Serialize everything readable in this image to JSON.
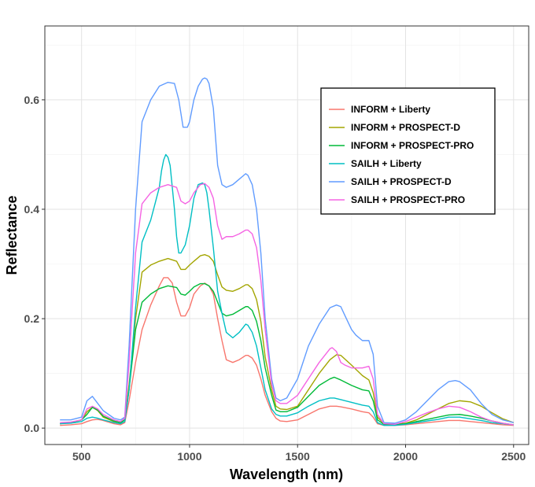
{
  "chart_data": {
    "type": "line",
    "title": "",
    "xlabel": "Wavelength (nm)",
    "ylabel": "Reflectance",
    "xlim": [
      330,
      2570
    ],
    "ylim": [
      -0.03,
      0.735
    ],
    "xticks": [
      500,
      1000,
      1500,
      2000,
      2500
    ],
    "xtick_labels": [
      "500",
      "1000",
      "1500",
      "2000",
      "2500"
    ],
    "yticks": [
      0.0,
      0.2,
      0.4,
      0.6
    ],
    "ytick_labels": [
      "0.0",
      "0.2",
      "0.4",
      "0.6"
    ],
    "grid": true,
    "legend_position": "top-right",
    "series": [
      {
        "name": "INFORM + Liberty",
        "color": "#F8766D",
        "x": [
          400,
          450,
          500,
          525,
          550,
          575,
          600,
          650,
          680,
          700,
          720,
          750,
          780,
          820,
          860,
          880,
          900,
          920,
          940,
          960,
          980,
          1000,
          1020,
          1050,
          1070,
          1090,
          1110,
          1130,
          1150,
          1170,
          1200,
          1230,
          1260,
          1270,
          1290,
          1310,
          1330,
          1350,
          1380,
          1400,
          1420,
          1450,
          1500,
          1550,
          1600,
          1650,
          1680,
          1700,
          1750,
          1800,
          1830,
          1850,
          1870,
          1900,
          1950,
          2000,
          2050,
          2100,
          2150,
          2200,
          2250,
          2300,
          2350,
          2400,
          2450,
          2500
        ],
        "y": [
          0.005,
          0.006,
          0.008,
          0.012,
          0.015,
          0.016,
          0.014,
          0.008,
          0.006,
          0.01,
          0.05,
          0.12,
          0.18,
          0.225,
          0.26,
          0.275,
          0.275,
          0.265,
          0.23,
          0.205,
          0.205,
          0.22,
          0.245,
          0.26,
          0.265,
          0.26,
          0.245,
          0.2,
          0.16,
          0.125,
          0.12,
          0.125,
          0.133,
          0.133,
          0.128,
          0.115,
          0.09,
          0.06,
          0.03,
          0.018,
          0.013,
          0.012,
          0.015,
          0.025,
          0.035,
          0.04,
          0.04,
          0.039,
          0.035,
          0.03,
          0.028,
          0.02,
          0.008,
          0.005,
          0.005,
          0.006,
          0.008,
          0.01,
          0.012,
          0.014,
          0.014,
          0.012,
          0.01,
          0.008,
          0.006,
          0.005
        ]
      },
      {
        "name": "INFORM + PROSPECT-D",
        "color": "#A3A500",
        "x": [
          400,
          450,
          500,
          525,
          550,
          575,
          600,
          650,
          680,
          700,
          720,
          750,
          780,
          820,
          860,
          900,
          940,
          960,
          980,
          1000,
          1020,
          1050,
          1070,
          1090,
          1110,
          1130,
          1150,
          1170,
          1200,
          1230,
          1260,
          1270,
          1290,
          1310,
          1330,
          1350,
          1380,
          1400,
          1420,
          1450,
          1500,
          1550,
          1600,
          1650,
          1680,
          1700,
          1750,
          1800,
          1830,
          1850,
          1870,
          1900,
          1950,
          2000,
          2050,
          2100,
          2150,
          2200,
          2250,
          2300,
          2350,
          2400,
          2450,
          2500
        ],
        "y": [
          0.008,
          0.01,
          0.015,
          0.03,
          0.038,
          0.032,
          0.02,
          0.012,
          0.01,
          0.015,
          0.08,
          0.2,
          0.285,
          0.298,
          0.305,
          0.31,
          0.305,
          0.29,
          0.29,
          0.298,
          0.305,
          0.315,
          0.317,
          0.314,
          0.305,
          0.28,
          0.258,
          0.252,
          0.25,
          0.255,
          0.262,
          0.262,
          0.255,
          0.235,
          0.195,
          0.13,
          0.07,
          0.04,
          0.035,
          0.034,
          0.04,
          0.07,
          0.1,
          0.125,
          0.134,
          0.133,
          0.115,
          0.096,
          0.088,
          0.065,
          0.02,
          0.008,
          0.007,
          0.009,
          0.015,
          0.025,
          0.035,
          0.045,
          0.05,
          0.048,
          0.04,
          0.028,
          0.017,
          0.01
        ]
      },
      {
        "name": "INFORM + PROSPECT-PRO",
        "color": "#00BA38",
        "x": [
          400,
          450,
          500,
          525,
          550,
          575,
          600,
          650,
          680,
          700,
          720,
          750,
          780,
          820,
          860,
          900,
          940,
          960,
          980,
          1000,
          1020,
          1050,
          1070,
          1090,
          1110,
          1130,
          1150,
          1170,
          1200,
          1230,
          1260,
          1270,
          1290,
          1310,
          1330,
          1350,
          1380,
          1400,
          1420,
          1450,
          1500,
          1550,
          1600,
          1650,
          1670,
          1700,
          1750,
          1800,
          1830,
          1850,
          1870,
          1900,
          1950,
          2000,
          2050,
          2100,
          2150,
          2200,
          2250,
          2300,
          2350,
          2400,
          2450,
          2500
        ],
        "y": [
          0.008,
          0.01,
          0.015,
          0.025,
          0.038,
          0.033,
          0.022,
          0.013,
          0.01,
          0.015,
          0.07,
          0.18,
          0.23,
          0.245,
          0.255,
          0.26,
          0.257,
          0.245,
          0.243,
          0.25,
          0.258,
          0.264,
          0.264,
          0.26,
          0.25,
          0.23,
          0.21,
          0.205,
          0.208,
          0.215,
          0.222,
          0.222,
          0.215,
          0.195,
          0.16,
          0.11,
          0.06,
          0.033,
          0.03,
          0.03,
          0.038,
          0.058,
          0.078,
          0.09,
          0.093,
          0.088,
          0.078,
          0.07,
          0.068,
          0.05,
          0.015,
          0.007,
          0.006,
          0.008,
          0.012,
          0.016,
          0.02,
          0.024,
          0.025,
          0.022,
          0.018,
          0.013,
          0.009,
          0.006
        ]
      },
      {
        "name": "SAILH + Liberty",
        "color": "#00BFC4",
        "x": [
          400,
          450,
          500,
          525,
          550,
          575,
          600,
          650,
          680,
          700,
          720,
          750,
          780,
          800,
          820,
          840,
          860,
          870,
          880,
          890,
          900,
          910,
          920,
          930,
          940,
          950,
          960,
          980,
          1000,
          1020,
          1040,
          1060,
          1070,
          1080,
          1090,
          1110,
          1130,
          1150,
          1170,
          1200,
          1230,
          1260,
          1270,
          1290,
          1310,
          1330,
          1350,
          1380,
          1400,
          1420,
          1450,
          1500,
          1550,
          1600,
          1650,
          1670,
          1700,
          1750,
          1800,
          1830,
          1850,
          1870,
          1900,
          1950,
          2000,
          2050,
          2100,
          2150,
          2200,
          2250,
          2300,
          2350,
          2400,
          2450,
          2500
        ],
        "y": [
          0.008,
          0.009,
          0.012,
          0.018,
          0.02,
          0.018,
          0.015,
          0.01,
          0.008,
          0.012,
          0.07,
          0.22,
          0.34,
          0.36,
          0.38,
          0.41,
          0.44,
          0.47,
          0.49,
          0.5,
          0.495,
          0.48,
          0.44,
          0.4,
          0.35,
          0.32,
          0.32,
          0.335,
          0.37,
          0.42,
          0.445,
          0.448,
          0.445,
          0.43,
          0.4,
          0.33,
          0.25,
          0.21,
          0.175,
          0.165,
          0.175,
          0.19,
          0.188,
          0.175,
          0.15,
          0.11,
          0.07,
          0.035,
          0.025,
          0.022,
          0.022,
          0.028,
          0.04,
          0.05,
          0.055,
          0.055,
          0.052,
          0.047,
          0.042,
          0.04,
          0.03,
          0.01,
          0.005,
          0.005,
          0.007,
          0.01,
          0.013,
          0.016,
          0.02,
          0.02,
          0.017,
          0.014,
          0.01,
          0.008,
          0.006
        ]
      },
      {
        "name": "SAILH + PROSPECT-D",
        "color": "#619CFF",
        "x": [
          400,
          450,
          500,
          525,
          550,
          575,
          600,
          650,
          680,
          700,
          720,
          750,
          780,
          820,
          860,
          900,
          930,
          950,
          970,
          990,
          1000,
          1020,
          1040,
          1060,
          1070,
          1080,
          1090,
          1110,
          1130,
          1150,
          1170,
          1200,
          1230,
          1260,
          1270,
          1290,
          1310,
          1330,
          1350,
          1380,
          1400,
          1420,
          1450,
          1500,
          1550,
          1600,
          1650,
          1680,
          1700,
          1720,
          1750,
          1770,
          1800,
          1830,
          1850,
          1870,
          1900,
          1950,
          2000,
          2050,
          2100,
          2150,
          2200,
          2230,
          2250,
          2300,
          2350,
          2400,
          2450,
          2500
        ],
        "y": [
          0.015,
          0.015,
          0.02,
          0.05,
          0.058,
          0.045,
          0.032,
          0.018,
          0.015,
          0.02,
          0.15,
          0.4,
          0.56,
          0.6,
          0.625,
          0.632,
          0.63,
          0.6,
          0.55,
          0.55,
          0.56,
          0.6,
          0.625,
          0.638,
          0.64,
          0.638,
          0.63,
          0.585,
          0.48,
          0.445,
          0.44,
          0.445,
          0.455,
          0.465,
          0.462,
          0.445,
          0.4,
          0.32,
          0.2,
          0.09,
          0.055,
          0.05,
          0.055,
          0.09,
          0.15,
          0.19,
          0.22,
          0.225,
          0.222,
          0.205,
          0.18,
          0.17,
          0.16,
          0.16,
          0.135,
          0.04,
          0.01,
          0.009,
          0.015,
          0.03,
          0.05,
          0.07,
          0.085,
          0.087,
          0.085,
          0.07,
          0.045,
          0.025,
          0.015,
          0.01
        ]
      },
      {
        "name": "SAILH + PROSPECT-PRO",
        "color": "#F564E3",
        "x": [
          400,
          450,
          500,
          525,
          550,
          575,
          600,
          650,
          680,
          700,
          720,
          750,
          780,
          820,
          860,
          900,
          940,
          960,
          980,
          1000,
          1020,
          1050,
          1070,
          1090,
          1110,
          1130,
          1150,
          1170,
          1200,
          1230,
          1260,
          1270,
          1290,
          1310,
          1330,
          1350,
          1380,
          1400,
          1420,
          1450,
          1500,
          1550,
          1600,
          1650,
          1660,
          1680,
          1700,
          1720,
          1750,
          1800,
          1830,
          1850,
          1870,
          1900,
          1950,
          2000,
          2050,
          2100,
          2150,
          2200,
          2250,
          2300,
          2350,
          2400,
          2450,
          2500
        ],
        "y": [
          0.01,
          0.011,
          0.015,
          0.035,
          0.04,
          0.035,
          0.025,
          0.015,
          0.012,
          0.018,
          0.12,
          0.32,
          0.41,
          0.43,
          0.44,
          0.445,
          0.44,
          0.415,
          0.41,
          0.415,
          0.43,
          0.445,
          0.447,
          0.44,
          0.42,
          0.37,
          0.345,
          0.35,
          0.35,
          0.355,
          0.362,
          0.362,
          0.355,
          0.33,
          0.27,
          0.18,
          0.08,
          0.05,
          0.045,
          0.045,
          0.06,
          0.09,
          0.12,
          0.145,
          0.147,
          0.14,
          0.12,
          0.115,
          0.11,
          0.11,
          0.113,
          0.09,
          0.025,
          0.008,
          0.007,
          0.012,
          0.02,
          0.028,
          0.035,
          0.04,
          0.038,
          0.03,
          0.02,
          0.013,
          0.009,
          0.006
        ]
      }
    ]
  }
}
